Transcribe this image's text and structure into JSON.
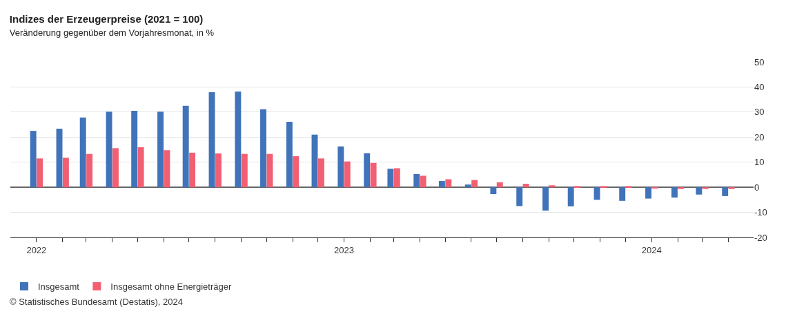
{
  "chart_data": {
    "type": "bar",
    "title": "Indizes der Erzeugerpreise (2021 = 100)",
    "subtitle": "Veränderung gegenüber dem Vorjahresmonat, in %",
    "x": [
      "2022-01",
      "2022-02",
      "2022-03",
      "2022-04",
      "2022-05",
      "2022-06",
      "2022-07",
      "2022-08",
      "2022-09",
      "2022-10",
      "2022-11",
      "2022-12",
      "2023-01",
      "2023-02",
      "2023-03",
      "2023-04",
      "2023-05",
      "2023-06",
      "2023-07",
      "2023-08",
      "2023-09",
      "2023-10",
      "2023-11",
      "2023-12",
      "2024-01",
      "2024-02",
      "2024-03",
      "2024-04"
    ],
    "series": [
      {
        "name": "Insgesamt",
        "color": "#4073b9",
        "values": [
          22.5,
          23.4,
          27.8,
          30.2,
          30.5,
          30.2,
          32.5,
          37.9,
          38.2,
          31.1,
          26.1,
          21.0,
          16.3,
          13.6,
          7.4,
          5.3,
          2.5,
          1.1,
          -2.7,
          -7.5,
          -9.3,
          -7.6,
          -5.0,
          -5.4,
          -4.5,
          -4.1,
          -2.9,
          -3.5
        ]
      },
      {
        "name": "Insgesamt ohne Energieträger",
        "color": "#f25f73",
        "values": [
          11.5,
          11.8,
          13.3,
          15.6,
          16.0,
          14.8,
          13.8,
          13.5,
          13.3,
          13.3,
          12.4,
          11.5,
          10.3,
          9.7,
          7.6,
          4.6,
          3.2,
          2.9,
          2.0,
          1.4,
          0.8,
          0.5,
          0.5,
          0.5,
          -0.4,
          -0.7,
          -0.7,
          -0.7
        ]
      }
    ],
    "xlim": [
      "2021-12",
      "2024-05"
    ],
    "xticks": [
      {
        "value": "2022-01",
        "label": "2022"
      },
      {
        "value": "2022-02",
        "label": null
      },
      {
        "value": "2022-03",
        "label": null
      },
      {
        "value": "2022-04",
        "label": null
      },
      {
        "value": "2022-05",
        "label": null
      },
      {
        "value": "2022-06",
        "label": null
      },
      {
        "value": "2022-07",
        "label": null
      },
      {
        "value": "2022-08",
        "label": null
      },
      {
        "value": "2022-09",
        "label": null
      },
      {
        "value": "2022-10",
        "label": null
      },
      {
        "value": "2022-11",
        "label": null
      },
      {
        "value": "2022-12",
        "label": null
      },
      {
        "value": "2023-01",
        "label": "2023"
      },
      {
        "value": "2023-02",
        "label": null
      },
      {
        "value": "2023-03",
        "label": null
      },
      {
        "value": "2023-04",
        "label": null
      },
      {
        "value": "2023-05",
        "label": null
      },
      {
        "value": "2023-06",
        "label": null
      },
      {
        "value": "2023-07",
        "label": null
      },
      {
        "value": "2023-08",
        "label": null
      },
      {
        "value": "2023-09",
        "label": null
      },
      {
        "value": "2023-10",
        "label": null
      },
      {
        "value": "2023-11",
        "label": null
      },
      {
        "value": "2023-12",
        "label": null
      },
      {
        "value": "2024-01",
        "label": "2024"
      },
      {
        "value": "2024-02",
        "label": null
      },
      {
        "value": "2024-03",
        "label": null
      },
      {
        "value": "2024-04",
        "label": null
      }
    ],
    "ylim": [
      -20,
      50
    ],
    "yticks": [
      -20,
      -10,
      0,
      10,
      20,
      30,
      40,
      50
    ],
    "grid": "y",
    "legend": "bottom left",
    "annotations": [
      "© Statistisches Bundesamt (Destatis), 2024"
    ]
  }
}
